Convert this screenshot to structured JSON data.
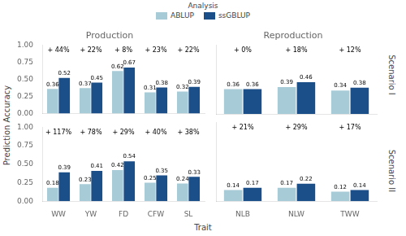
{
  "chart_data": [
    {
      "type": "bar",
      "title": "Production",
      "categories": [
        "WW",
        "YW",
        "FD",
        "CFW",
        "SL"
      ],
      "series": [
        {
          "name": "ABLUP",
          "color": "#a8ccd7",
          "values": [
            0.36,
            0.37,
            0.62,
            0.31,
            0.32
          ]
        },
        {
          "name": "ssGBLUP",
          "color": "#1b4f8a",
          "values": [
            0.52,
            0.45,
            0.67,
            0.38,
            0.39
          ]
        }
      ],
      "annotations": [
        "+ 44%",
        "+ 22%",
        "+ 8%",
        "+ 23%",
        "+ 22%"
      ],
      "ylim": [
        0.0,
        1.0
      ],
      "yticks": [
        {
          "value": 0.0,
          "label": "0.00"
        },
        {
          "value": 0.25,
          "label": "0.25"
        },
        {
          "value": 0.5,
          "label": "0.50"
        },
        {
          "value": 0.75,
          "label": "0.75"
        },
        {
          "value": 1.0,
          "label": "1.00"
        }
      ],
      "grid": false,
      "data_labels": true,
      "tick_labels": "y"
    },
    {
      "type": "bar",
      "title": "Reproduction",
      "categories": [
        "NLB",
        "NLW",
        "TWW"
      ],
      "series": [
        {
          "name": "ABLUP",
          "color": "#a8ccd7",
          "values": [
            0.36,
            0.39,
            0.34
          ]
        },
        {
          "name": "ssGBLUP",
          "color": "#1b4f8a",
          "values": [
            0.36,
            0.46,
            0.38
          ]
        }
      ],
      "annotations": [
        "+ 0%",
        "+ 18%",
        "+ 12%"
      ],
      "side_label": "Scenario I",
      "ylim": [
        0.0,
        1.0
      ],
      "yticks": [
        {
          "value": 0.0,
          "label": "0.00"
        },
        {
          "value": 0.25,
          "label": "0.25"
        },
        {
          "value": 0.5,
          "label": "0.50"
        },
        {
          "value": 0.75,
          "label": "0.75"
        },
        {
          "value": 1.0,
          "label": "1.00"
        }
      ],
      "grid": false,
      "data_labels": true,
      "tick_labels": false
    },
    {
      "type": "bar",
      "categories": [
        "WW",
        "YW",
        "FD",
        "CFW",
        "SL"
      ],
      "series": [
        {
          "name": "ABLUP",
          "color": "#a8ccd7",
          "values": [
            0.18,
            0.23,
            0.42,
            0.25,
            0.24
          ]
        },
        {
          "name": "ssGBLUP",
          "color": "#1b4f8a",
          "values": [
            0.39,
            0.41,
            0.54,
            0.35,
            0.33
          ]
        }
      ],
      "annotations": [
        "+ 117%",
        "+ 78%",
        "+ 29%",
        "+ 40%",
        "+ 38%"
      ],
      "ylim": [
        0.0,
        1.0
      ],
      "yticks": [
        {
          "value": 0.0,
          "label": "0.00"
        },
        {
          "value": 0.25,
          "label": "0.25"
        },
        {
          "value": 0.5,
          "label": "0.50"
        },
        {
          "value": 0.75,
          "label": "0.75"
        },
        {
          "value": 1.0,
          "label": "1.00"
        }
      ],
      "grid": false,
      "data_labels": true
    },
    {
      "type": "bar",
      "categories": [
        "NLB",
        "NLW",
        "TWW"
      ],
      "series": [
        {
          "name": "ABLUP",
          "color": "#a8ccd7",
          "values": [
            0.14,
            0.17,
            0.12
          ]
        },
        {
          "name": "ssGBLUP",
          "color": "#1b4f8a",
          "values": [
            0.17,
            0.22,
            0.14
          ]
        }
      ],
      "annotations": [
        "+ 21%",
        "+ 29%",
        "+ 17%"
      ],
      "side_label": "Scenario II",
      "ylim": [
        0.0,
        1.0
      ],
      "yticks": [
        {
          "value": 0.0,
          "label": "0.00"
        },
        {
          "value": 0.25,
          "label": "0.25"
        },
        {
          "value": 0.5,
          "label": "0.50"
        },
        {
          "value": 0.75,
          "label": "0.75"
        },
        {
          "value": 1.0,
          "label": "1.00"
        }
      ],
      "grid": false,
      "data_labels": true,
      "tick_labels": "x"
    }
  ],
  "xlabel": "Trait",
  "ylabel": "Prediction Accuracy",
  "legend_title": "Analysis",
  "legend": "top"
}
